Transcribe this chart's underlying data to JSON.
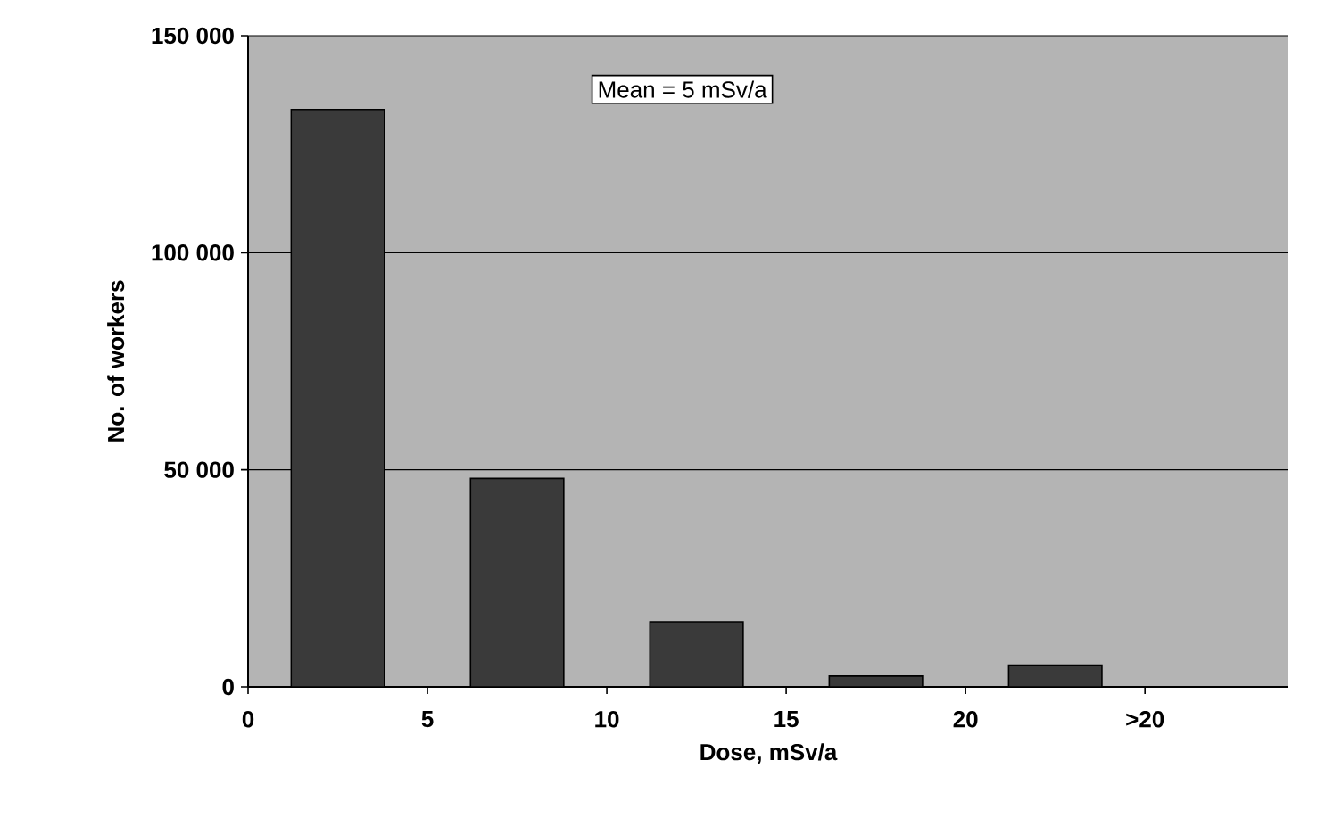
{
  "chart_data": {
    "type": "bar",
    "xlabel": "Dose, mSv/a",
    "ylabel": "No. of workers",
    "x": [
      2.5,
      7.5,
      12.5,
      17.5,
      22.5
    ],
    "values": [
      133000,
      48000,
      15000,
      2500,
      5000
    ],
    "color": "#3a3a3a",
    "xlim": [
      0,
      29
    ],
    "xticks": [
      0,
      5,
      10,
      15,
      20,
      {
        "value": 25,
        "label": ">20"
      }
    ],
    "ylim": [
      0,
      150000
    ],
    "yticks": [
      0,
      {
        "value": 50000,
        "label": "50 000"
      },
      {
        "value": 100000,
        "label": "100 000"
      },
      {
        "value": 150000,
        "label": "150 000"
      }
    ],
    "grid": "y",
    "annotations": [
      "Mean = 5 mSv/a"
    ]
  }
}
